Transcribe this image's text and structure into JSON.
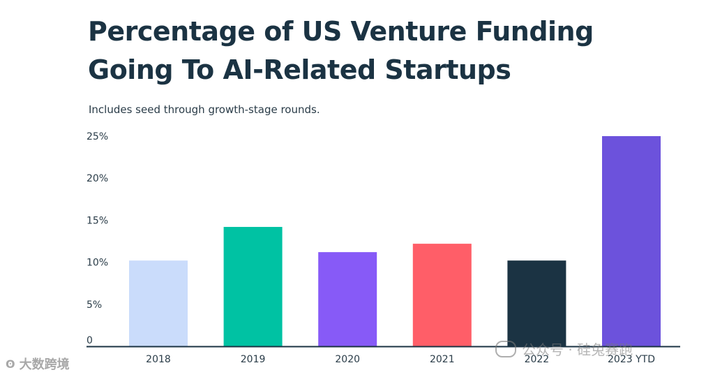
{
  "header": {
    "title": "Percentage of US Venture Funding Going To AI-Related Startups",
    "subtitle": "Includes seed through growth-stage rounds."
  },
  "chart_data": {
    "type": "bar",
    "title": "Percentage of US Venture Funding Going To AI-Related Startups",
    "subtitle": "Includes seed through growth-stage rounds.",
    "categories": [
      "2018",
      "2019",
      "2020",
      "2021",
      "2022",
      "2023 YTD"
    ],
    "values": [
      10.2,
      14.2,
      11.2,
      12.2,
      10.2,
      25.0
    ],
    "colors": [
      "#cadcfb",
      "#00c2a3",
      "#875af7",
      "#ff5e68",
      "#1b3343",
      "#6c52dc"
    ],
    "ylim": [
      0,
      25
    ],
    "yticks": [
      0,
      5,
      10,
      15,
      20,
      25
    ],
    "ytick_labels": [
      "0",
      "5%",
      "10%",
      "15%",
      "20%",
      "25%"
    ],
    "grid": false,
    "xlabel": "",
    "ylabel": ""
  },
  "watermarks": {
    "left": "大数跨境",
    "right": "公众号 · 硅兔赛跑"
  }
}
